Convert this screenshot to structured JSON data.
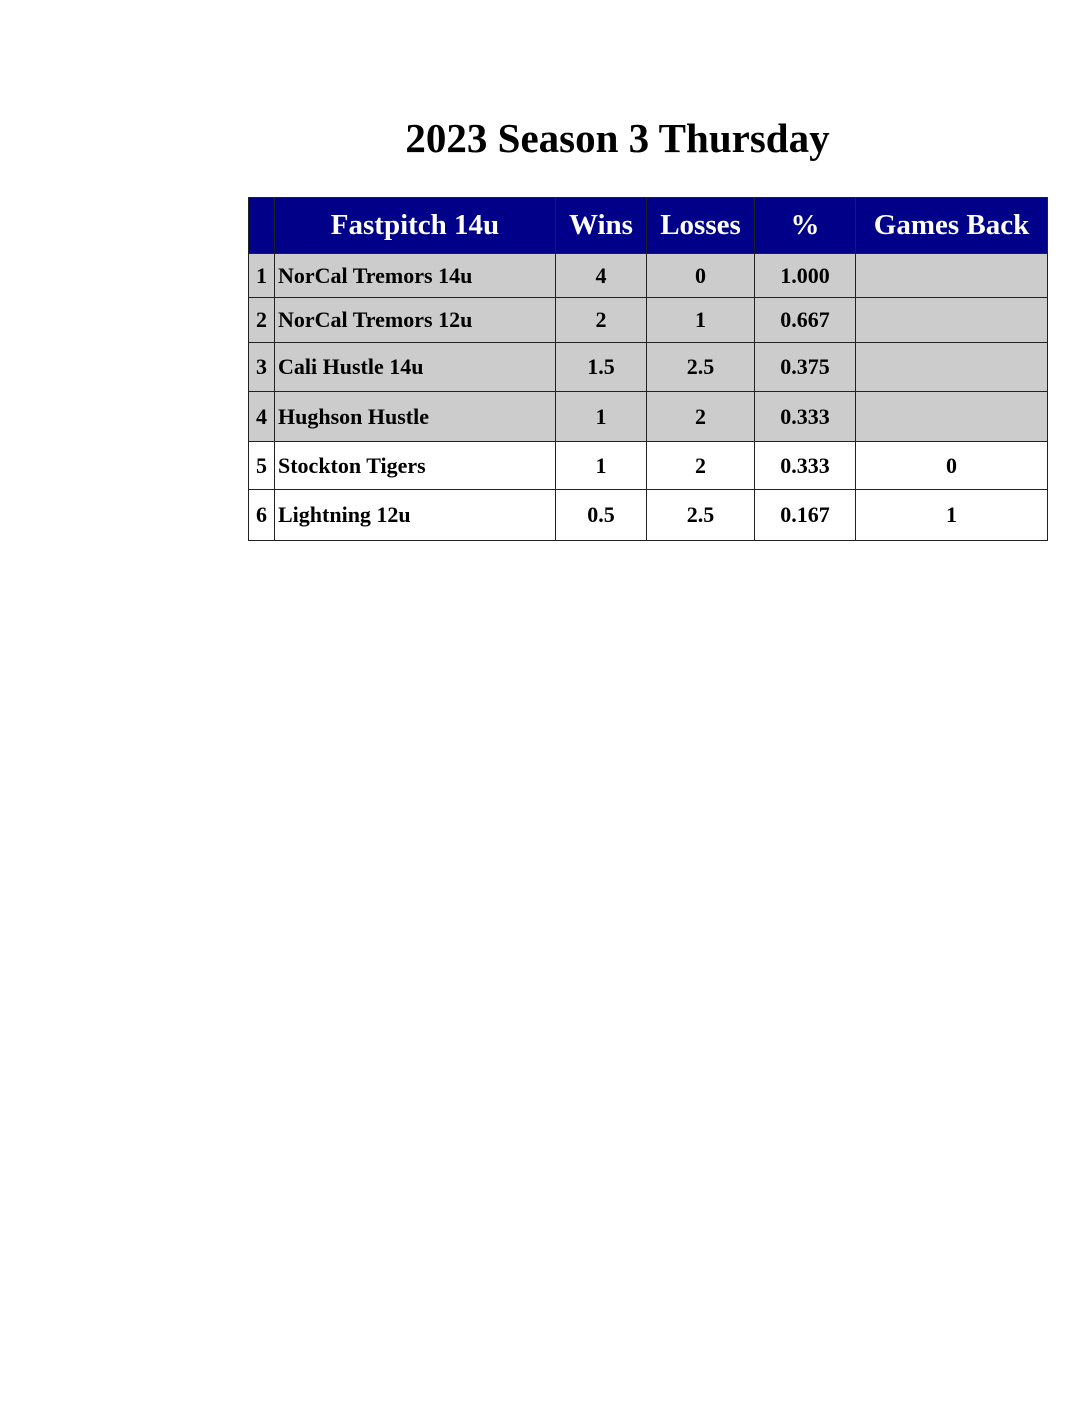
{
  "title": "2023 Season 3 Thursday",
  "colors": {
    "header_bg": "#000088",
    "header_text": "#ffffff",
    "top_rows_bg": "#cccccc"
  },
  "table": {
    "headers": [
      "",
      "Fastpitch 14u",
      "Wins",
      "Losses",
      "%",
      "Games Back"
    ],
    "rows": [
      {
        "rank": "1",
        "team": "NorCal Tremors 14u",
        "wins": "4",
        "losses": "0",
        "pct": "1.000",
        "gb": ""
      },
      {
        "rank": "2",
        "team": "NorCal Tremors 12u",
        "wins": "2",
        "losses": "1",
        "pct": "0.667",
        "gb": ""
      },
      {
        "rank": "3",
        "team": "Cali Hustle 14u",
        "wins": "1.5",
        "losses": "2.5",
        "pct": "0.375",
        "gb": ""
      },
      {
        "rank": "4",
        "team": "Hughson Hustle",
        "wins": "1",
        "losses": "2",
        "pct": "0.333",
        "gb": ""
      },
      {
        "rank": "5",
        "team": "Stockton Tigers",
        "wins": "1",
        "losses": "2",
        "pct": "0.333",
        "gb": "0"
      },
      {
        "rank": "6",
        "team": "Lightning 12u",
        "wins": "0.5",
        "losses": "2.5",
        "pct": "0.167",
        "gb": "1"
      }
    ]
  }
}
